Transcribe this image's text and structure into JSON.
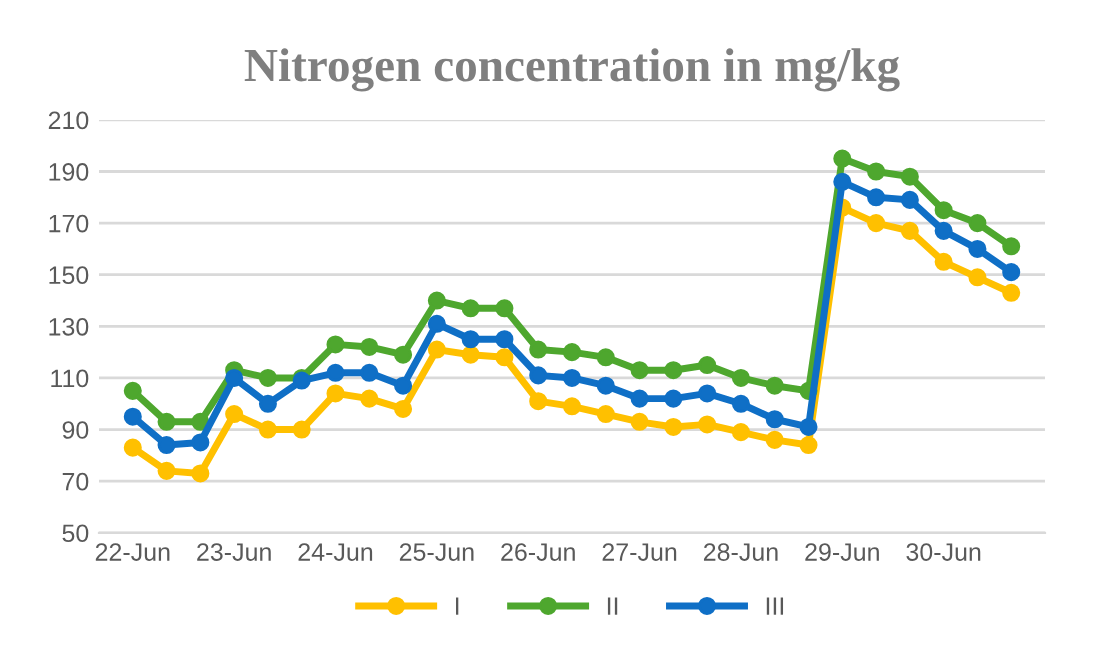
{
  "chart_data": {
    "type": "line",
    "title": "Nitrogen concentration in mg/kg",
    "categories": [
      "22-Jun",
      null,
      null,
      "23-Jun",
      null,
      null,
      "24-Jun",
      null,
      null,
      "25-Jun",
      null,
      null,
      "26-Jun",
      null,
      null,
      "27-Jun",
      null,
      null,
      "28-Jun",
      null,
      null,
      "29-Jun",
      null,
      null,
      "30-Jun",
      null,
      null
    ],
    "series": [
      {
        "name": "I",
        "color": "#ffc000",
        "values": [
          83,
          74,
          73,
          96,
          90,
          90,
          104,
          102,
          98,
          121,
          119,
          118,
          101,
          99,
          96,
          93,
          91,
          92,
          89,
          86,
          84,
          176,
          170,
          167,
          155,
          149,
          143
        ]
      },
      {
        "name": "II",
        "color": "#4ea72e",
        "values": [
          105,
          93,
          93,
          113,
          110,
          110,
          123,
          122,
          119,
          140,
          137,
          137,
          121,
          120,
          118,
          113,
          113,
          115,
          110,
          107,
          105,
          195,
          190,
          188,
          175,
          170,
          161
        ]
      },
      {
        "name": "III",
        "color": "#0f6fc6",
        "values": [
          95,
          84,
          85,
          110,
          100,
          109,
          112,
          112,
          107,
          131,
          125,
          125,
          111,
          110,
          107,
          102,
          102,
          104,
          100,
          94,
          91,
          186,
          180,
          179,
          167,
          160,
          151
        ]
      }
    ],
    "ylim": [
      50,
      210
    ],
    "yticks": [
      50,
      70,
      90,
      110,
      130,
      150,
      170,
      190,
      210
    ],
    "grid": "y",
    "legend": "bottom",
    "marker": "circle",
    "line_style": "solid"
  }
}
